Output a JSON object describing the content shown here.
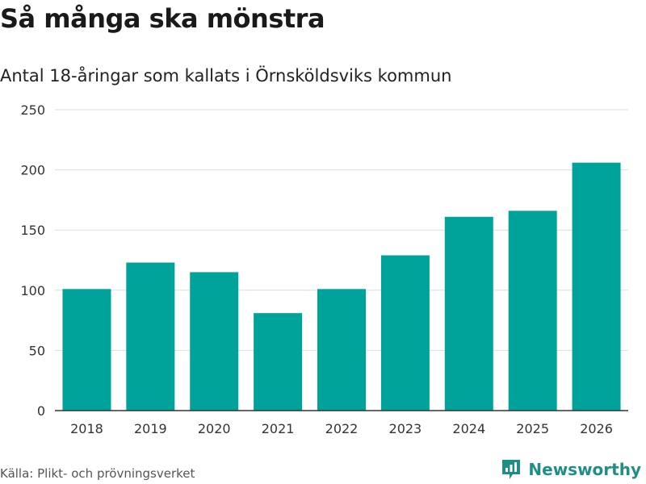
{
  "header": {
    "title": "Så många ska mönstra",
    "subtitle": "Antal 18-åringar som kallats i Örnsköldsviks kommun"
  },
  "footer": {
    "source": "Källa: Plikt- och prövningsverket",
    "brand": "Newsworthy"
  },
  "colors": {
    "bar": "#00a39a",
    "grid": "#dddddd",
    "axis": "#333333",
    "brand": "#1f8f86"
  },
  "chart_data": {
    "type": "bar",
    "title": "Så många ska mönstra",
    "subtitle": "Antal 18-åringar som kallats i Örnsköldsviks kommun",
    "xlabel": "",
    "ylabel": "",
    "categories": [
      "2018",
      "2019",
      "2020",
      "2021",
      "2022",
      "2023",
      "2024",
      "2025",
      "2026"
    ],
    "values": [
      101,
      123,
      115,
      81,
      101,
      129,
      161,
      166,
      206
    ],
    "yticks": [
      0,
      50,
      100,
      150,
      200,
      250
    ],
    "ylim": [
      0,
      250
    ],
    "grid": true,
    "legend": "none"
  }
}
